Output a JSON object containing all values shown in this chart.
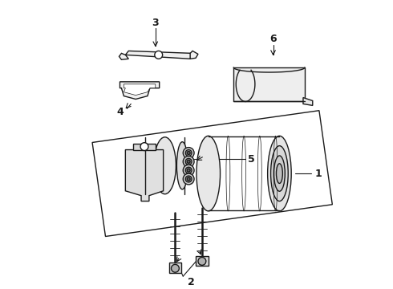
{
  "background_color": "#ffffff",
  "line_color": "#1a1a1a",
  "line_width": 1.0,
  "label_fontsize": 9,
  "label_fontweight": "bold",
  "fig_width": 4.9,
  "fig_height": 3.6,
  "dpi": 100
}
